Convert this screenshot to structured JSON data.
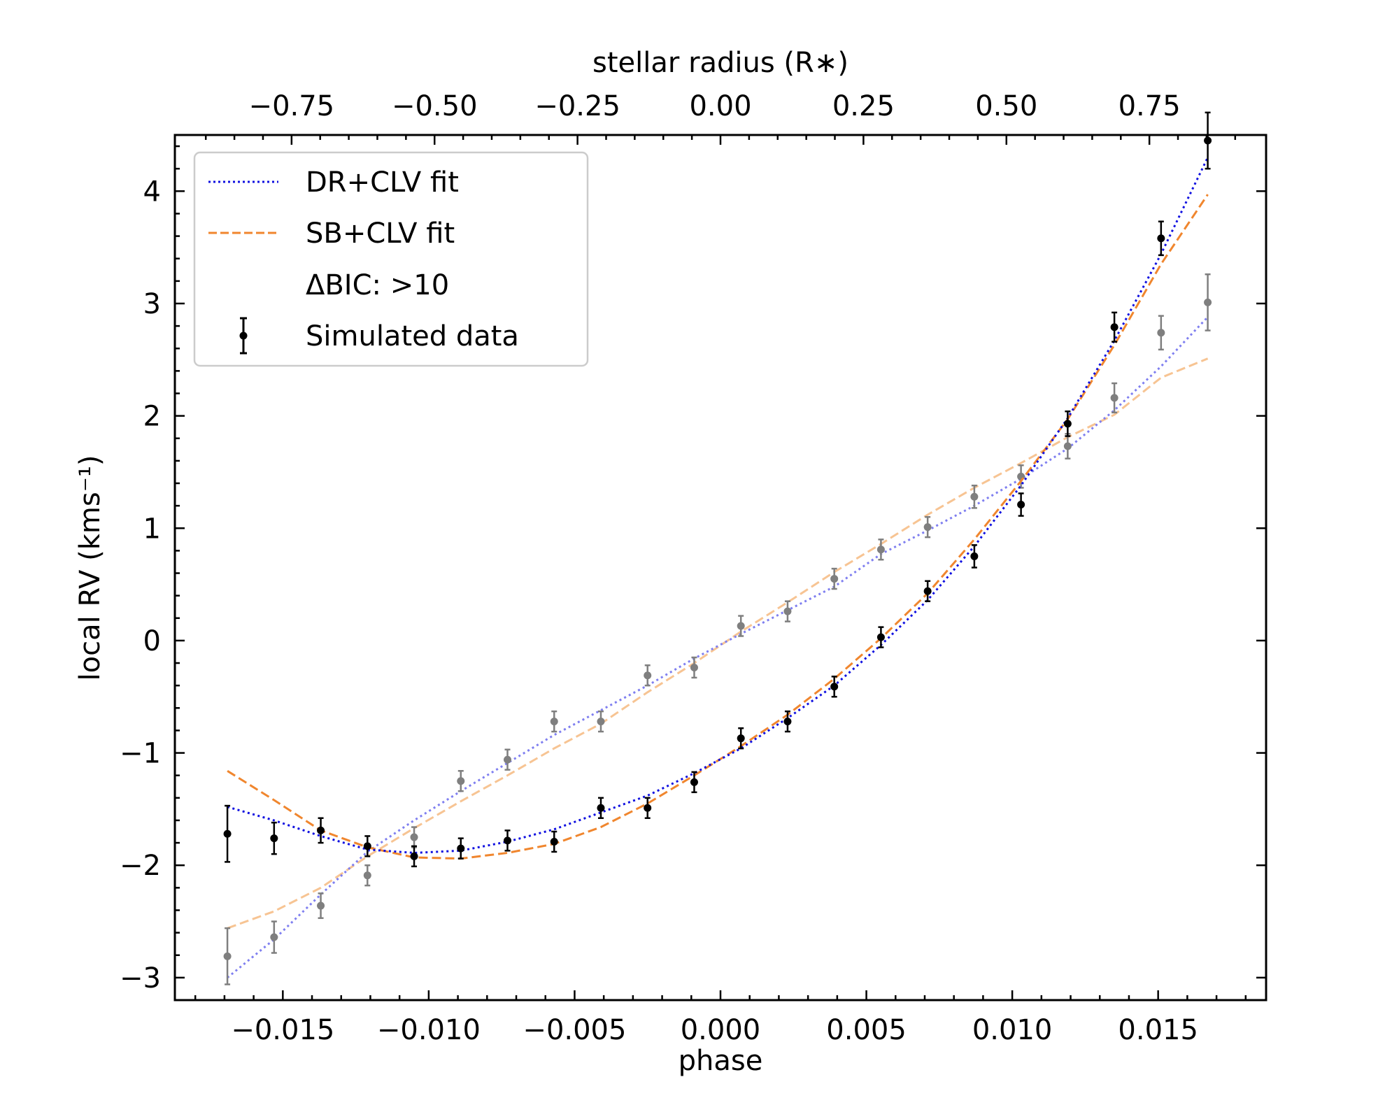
{
  "chart_data": {
    "type": "scatter",
    "xlabel": "phase",
    "ylabel": "local RV (kms⁻¹)",
    "top_xlabel": "stellar radius (R∗)",
    "xlim": [
      -0.0187,
      0.0187
    ],
    "ylim": [
      -3.2,
      4.5
    ],
    "x_ticks": [
      -0.015,
      -0.01,
      -0.005,
      0.0,
      0.005,
      0.01,
      0.015
    ],
    "x_tick_labels": [
      "−0.015",
      "−0.010",
      "−0.005",
      "0.000",
      "0.005",
      "0.010",
      "0.015"
    ],
    "y_ticks": [
      -3,
      -2,
      -1,
      0,
      1,
      2,
      3,
      4
    ],
    "y_tick_labels": [
      "−3",
      "−2",
      "−1",
      "0",
      "1",
      "2",
      "3",
      "4"
    ],
    "top_ticks": [
      -0.75,
      -0.5,
      -0.25,
      0.0,
      0.25,
      0.5,
      0.75
    ],
    "top_tick_labels": [
      "−0.75",
      "−0.50",
      "−0.25",
      "0.00",
      "0.25",
      "0.50",
      "0.75"
    ],
    "top_axis_phase_per_unit": 0.0196,
    "legend": {
      "position": "upper-left",
      "entries": [
        {
          "label": "DR+CLV fit",
          "style": "dotted",
          "color": "#1010e0"
        },
        {
          "label": "SB+CLV fit",
          "style": "dashed",
          "color": "#f0862e"
        },
        {
          "label": "ΔBIC: >10",
          "style": "none",
          "color": "#ffffff"
        },
        {
          "label": "Simulated data",
          "style": "errorbar",
          "color": "#000000"
        }
      ]
    },
    "phase": [
      -0.0169,
      -0.0153,
      -0.0137,
      -0.0121,
      -0.0105,
      -0.0089,
      -0.0073,
      -0.0057,
      -0.0041,
      -0.0025,
      -0.0009,
      0.0007,
      0.0023,
      0.0039,
      0.0055,
      0.0071,
      0.0087,
      0.0103,
      0.0119,
      0.0135,
      0.0151,
      0.0167
    ],
    "series": [
      {
        "name": "Simulated data",
        "color": "#000000",
        "y": [
          -1.72,
          -1.76,
          -1.69,
          -1.83,
          -1.92,
          -1.85,
          -1.78,
          -1.79,
          -1.49,
          -1.49,
          -1.26,
          -0.87,
          -0.72,
          -0.41,
          0.03,
          0.44,
          0.75,
          1.21,
          1.93,
          2.79,
          3.58,
          4.45
        ],
        "err": [
          0.25,
          0.14,
          0.11,
          0.09,
          0.09,
          0.09,
          0.09,
          0.09,
          0.09,
          0.09,
          0.09,
          0.09,
          0.09,
          0.09,
          0.09,
          0.09,
          0.1,
          0.1,
          0.11,
          0.13,
          0.15,
          0.25
        ]
      },
      {
        "name": "Simulated data (second case)",
        "color": "#7f7f7f",
        "y": [
          -2.81,
          -2.64,
          -2.36,
          -2.09,
          -1.75,
          -1.25,
          -1.06,
          -0.72,
          -0.72,
          -0.31,
          -0.24,
          0.13,
          0.26,
          0.55,
          0.81,
          1.01,
          1.28,
          1.46,
          1.73,
          2.16,
          2.74,
          3.01
        ],
        "err": [
          0.25,
          0.14,
          0.11,
          0.09,
          0.09,
          0.09,
          0.09,
          0.09,
          0.09,
          0.09,
          0.09,
          0.09,
          0.09,
          0.09,
          0.09,
          0.09,
          0.1,
          0.1,
          0.11,
          0.13,
          0.15,
          0.25
        ]
      },
      {
        "name": "DR+CLV fit",
        "style": "dotted",
        "color": "#1010e0",
        "y": [
          -1.48,
          -1.6,
          -1.74,
          -1.86,
          -1.89,
          -1.87,
          -1.79,
          -1.68,
          -1.53,
          -1.38,
          -1.18,
          -0.96,
          -0.69,
          -0.4,
          -0.04,
          0.36,
          0.84,
          1.38,
          1.98,
          2.67,
          3.44,
          4.3
        ]
      },
      {
        "name": "SB+CLV fit",
        "style": "dashed",
        "color": "#f0862e",
        "y": [
          -1.16,
          -1.42,
          -1.69,
          -1.84,
          -1.93,
          -1.94,
          -1.89,
          -1.81,
          -1.66,
          -1.45,
          -1.2,
          -0.94,
          -0.66,
          -0.34,
          0.02,
          0.42,
          0.9,
          1.42,
          1.97,
          2.63,
          3.35,
          3.97
        ]
      },
      {
        "name": "DR+CLV fit (second case)",
        "style": "dotted",
        "color": "#7f7ff0",
        "y": [
          -3.0,
          -2.66,
          -2.26,
          -1.88,
          -1.6,
          -1.34,
          -1.09,
          -0.84,
          -0.62,
          -0.4,
          -0.16,
          0.06,
          0.27,
          0.48,
          0.77,
          0.98,
          1.2,
          1.44,
          1.71,
          2.05,
          2.44,
          2.88
        ]
      },
      {
        "name": "SB+CLV fit (second case)",
        "style": "dashed",
        "color": "#f7c493",
        "y": [
          -2.56,
          -2.41,
          -2.2,
          -1.92,
          -1.67,
          -1.43,
          -1.2,
          -0.96,
          -0.74,
          -0.46,
          -0.2,
          0.08,
          0.34,
          0.61,
          0.86,
          1.12,
          1.36,
          1.58,
          1.81,
          2.01,
          2.34,
          2.51
        ]
      }
    ]
  }
}
